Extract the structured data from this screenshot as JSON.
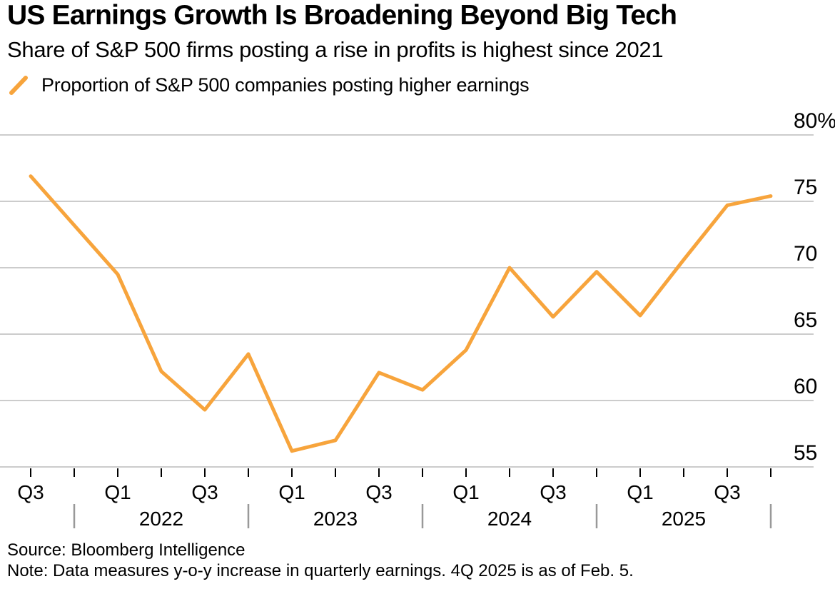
{
  "header": {
    "title": "US Earnings Growth Is Broadening Beyond Big Tech",
    "subtitle": "Share of S&P 500 firms posting a rise in profits is highest since 2021"
  },
  "legend": {
    "label": "Proportion of S&P 500 companies posting higher earnings",
    "color": "#F7A43C"
  },
  "chart_data": {
    "type": "line",
    "title": "US Earnings Growth Is Broadening Beyond Big Tech",
    "subtitle": "Share of S&P 500 firms posting a rise in profits is highest since 2021",
    "x": [
      "Q3 2021",
      "Q4 2021",
      "Q1 2022",
      "Q2 2022",
      "Q3 2022",
      "Q4 2022",
      "Q1 2023",
      "Q2 2023",
      "Q3 2023",
      "Q4 2023",
      "Q1 2024",
      "Q2 2024",
      "Q3 2024",
      "Q4 2024",
      "Q1 2025",
      "Q2 2025",
      "Q3 2025",
      "Q4 2025"
    ],
    "series": [
      {
        "name": "Proportion of S&P 500 companies posting higher earnings",
        "color": "#F7A43C",
        "values": [
          76.9,
          73.2,
          69.5,
          62.2,
          59.3,
          63.5,
          56.2,
          57.0,
          62.1,
          60.8,
          63.8,
          70.0,
          66.3,
          69.7,
          66.4,
          70.6,
          74.7,
          75.4
        ]
      }
    ],
    "ylim": [
      55,
      80
    ],
    "yticks": [
      80,
      75,
      70,
      65,
      60,
      55
    ],
    "ytick_labels": [
      "80%",
      "75",
      "70",
      "65",
      "60",
      "55"
    ],
    "xtick_labels": [
      "Q3",
      "",
      "Q1",
      "",
      "Q3",
      "",
      "Q1",
      "",
      "Q3",
      "",
      "Q1",
      "",
      "Q3",
      "",
      "Q1",
      "",
      "Q3",
      ""
    ],
    "years": [
      {
        "label": "2022",
        "center_index": 3
      },
      {
        "label": "2023",
        "center_index": 7
      },
      {
        "label": "2024",
        "center_index": 11
      },
      {
        "label": "2025",
        "center_index": 15
      }
    ],
    "year_separator_indices": [
      1,
      5,
      9,
      13,
      17
    ],
    "grid": true,
    "legend_position": "top-left",
    "gridline_color": "#cccccc",
    "year_text_color": "#6e6e6e"
  },
  "footer": {
    "source": "Source: Bloomberg Intelligence",
    "note": "Note: Data measures y-o-y increase in quarterly earnings. 4Q 2025 is as of Feb. 5."
  }
}
